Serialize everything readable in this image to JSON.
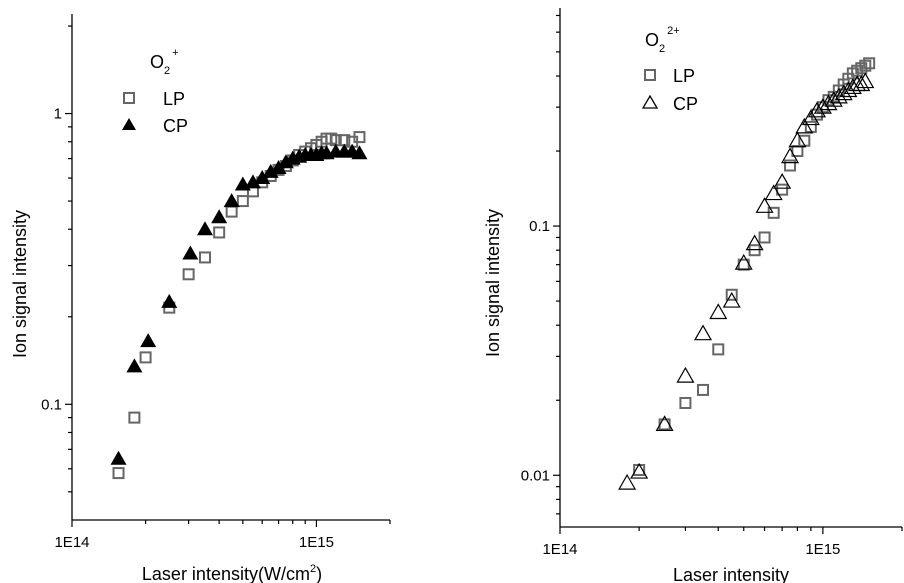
{
  "chart_data": [
    {
      "type": "scatter",
      "xscale": "log",
      "yscale": "log",
      "xlim": [
        100000000000000.0,
        2000000000000000.0
      ],
      "ylim": [
        0.04,
        2.2
      ],
      "xticks": [
        {
          "value": 100000000000000.0,
          "label": "1E14"
        },
        {
          "value": 1000000000000000.0,
          "label": "1E15"
        }
      ],
      "yticks": [
        {
          "value": 0.1,
          "label": "0.1"
        },
        {
          "value": 1,
          "label": "1"
        }
      ],
      "xlabel_main": "Laser intensity(W/cm",
      "xlabel_sup": "2",
      "xlabel_tail": ")",
      "ylabel": "Ion signal intensity",
      "legend_title_main": "O",
      "legend_title_sub": "2",
      "legend_title_sup": "+",
      "legend_placement": "top-left",
      "series": [
        {
          "name": "LP",
          "marker": "open-square",
          "color": "#666666",
          "x": [
            155000000000000.0,
            180000000000000.0,
            200000000000000.0,
            250000000000000.0,
            300000000000000.0,
            350000000000000.0,
            400000000000000.0,
            450000000000000.0,
            500000000000000.0,
            550000000000000.0,
            600000000000000.0,
            650000000000000.0,
            700000000000000.0,
            750000000000000.0,
            800000000000000.0,
            850000000000000.0,
            900000000000000.0,
            950000000000000.0,
            1000000000000000.0,
            1050000000000000.0,
            1100000000000000.0,
            1150000000000000.0,
            1200000000000000.0,
            1300000000000000.0,
            1400000000000000.0,
            1500000000000000.0
          ],
          "y": [
            0.058,
            0.09,
            0.145,
            0.215,
            0.28,
            0.32,
            0.39,
            0.46,
            0.5,
            0.54,
            0.58,
            0.61,
            0.64,
            0.66,
            0.69,
            0.72,
            0.74,
            0.76,
            0.78,
            0.8,
            0.82,
            0.82,
            0.81,
            0.81,
            0.8,
            0.83
          ]
        },
        {
          "name": "CP",
          "marker": "filled-triangle",
          "color": "#000000",
          "x": [
            155000000000000.0,
            180000000000000.0,
            205000000000000.0,
            250000000000000.0,
            305000000000000.0,
            350000000000000.0,
            400000000000000.0,
            450000000000000.0,
            500000000000000.0,
            550000000000000.0,
            600000000000000.0,
            650000000000000.0,
            700000000000000.0,
            750000000000000.0,
            800000000000000.0,
            850000000000000.0,
            900000000000000.0,
            950000000000000.0,
            1000000000000000.0,
            1050000000000000.0,
            1100000000000000.0,
            1200000000000000.0,
            1300000000000000.0,
            1400000000000000.0,
            1500000000000000.0
          ],
          "y": [
            0.065,
            0.135,
            0.165,
            0.225,
            0.33,
            0.4,
            0.44,
            0.5,
            0.57,
            0.58,
            0.6,
            0.63,
            0.65,
            0.68,
            0.7,
            0.71,
            0.72,
            0.72,
            0.72,
            0.73,
            0.73,
            0.74,
            0.74,
            0.74,
            0.73
          ]
        }
      ]
    },
    {
      "type": "scatter",
      "xscale": "log",
      "yscale": "log",
      "xlim": [
        100000000000000.0,
        2000000000000000.0
      ],
      "ylim": [
        0.0062,
        0.75
      ],
      "xticks": [
        {
          "value": 100000000000000.0,
          "label": "1E14"
        },
        {
          "value": 1000000000000000.0,
          "label": "1E15"
        }
      ],
      "yticks": [
        {
          "value": 0.01,
          "label": "0.01"
        },
        {
          "value": 0.1,
          "label": "0.1"
        }
      ],
      "xlabel_main": "Laser intensity",
      "ylabel": "Ion signal intensity",
      "legend_title_main": "O",
      "legend_title_sub": "2",
      "legend_title_sup": "2+",
      "legend_placement": "top-left",
      "series": [
        {
          "name": "LP",
          "marker": "open-square",
          "color": "#666666",
          "x": [
            200000000000000.0,
            250000000000000.0,
            300000000000000.0,
            350000000000000.0,
            400000000000000.0,
            450000000000000.0,
            500000000000000.0,
            550000000000000.0,
            600000000000000.0,
            650000000000000.0,
            700000000000000.0,
            750000000000000.0,
            800000000000000.0,
            850000000000000.0,
            900000000000000.0,
            950000000000000.0,
            1000000000000000.0,
            1050000000000000.0,
            1100000000000000.0,
            1150000000000000.0,
            1200000000000000.0,
            1250000000000000.0,
            1300000000000000.0,
            1350000000000000.0,
            1400000000000000.0,
            1450000000000000.0,
            1500000000000000.0
          ],
          "y": [
            0.0105,
            0.016,
            0.0195,
            0.022,
            0.032,
            0.053,
            0.07,
            0.08,
            0.09,
            0.113,
            0.14,
            0.175,
            0.2,
            0.22,
            0.25,
            0.28,
            0.3,
            0.32,
            0.33,
            0.35,
            0.37,
            0.39,
            0.41,
            0.42,
            0.43,
            0.44,
            0.45
          ]
        },
        {
          "name": "CP",
          "marker": "open-triangle",
          "color": "#000000",
          "x": [
            180000000000000.0,
            200000000000000.0,
            250000000000000.0,
            300000000000000.0,
            350000000000000.0,
            400000000000000.0,
            450000000000000.0,
            500000000000000.0,
            550000000000000.0,
            600000000000000.0,
            650000000000000.0,
            700000000000000.0,
            750000000000000.0,
            800000000000000.0,
            850000000000000.0,
            900000000000000.0,
            950000000000000.0,
            1000000000000000.0,
            1050000000000000.0,
            1100000000000000.0,
            1150000000000000.0,
            1200000000000000.0,
            1250000000000000.0,
            1300000000000000.0,
            1350000000000000.0,
            1400000000000000.0,
            1450000000000000.0
          ],
          "y": [
            0.0093,
            0.0103,
            0.016,
            0.025,
            0.037,
            0.045,
            0.05,
            0.071,
            0.085,
            0.12,
            0.135,
            0.15,
            0.19,
            0.22,
            0.25,
            0.27,
            0.29,
            0.3,
            0.31,
            0.32,
            0.33,
            0.34,
            0.35,
            0.36,
            0.37,
            0.37,
            0.38
          ]
        }
      ]
    }
  ]
}
